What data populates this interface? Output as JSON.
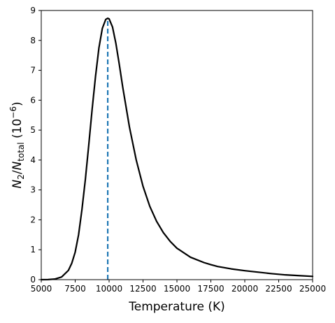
{
  "chart_data": {
    "type": "line",
    "title": "",
    "xlabel": "Temperature (K)",
    "ylabel": {
      "numerator_symbol": "N",
      "numerator_sub": "2",
      "slash": "/",
      "denominator_symbol": "N",
      "denominator_sub": "total",
      "unit_open": " (10",
      "unit_exp": "−6",
      "unit_close": ")"
    },
    "xlim": [
      5000,
      25000
    ],
    "ylim": [
      0,
      9
    ],
    "xticks": [
      5000,
      7500,
      10000,
      12500,
      15000,
      17500,
      20000,
      22500,
      25000
    ],
    "xtick_labels": [
      "5000",
      "7500",
      "10000",
      "12500",
      "15000",
      "17500",
      "20000",
      "22500",
      "25000"
    ],
    "yticks": [
      0,
      1,
      2,
      3,
      4,
      5,
      6,
      7,
      8,
      9
    ],
    "ytick_labels": [
      "0",
      "1",
      "2",
      "3",
      "4",
      "5",
      "6",
      "7",
      "8",
      "9"
    ],
    "grid": false,
    "legend": "none",
    "series": [
      {
        "color": "#000000",
        "style": "solid",
        "x": [
          5000,
          5500,
          6000,
          6500,
          7000,
          7250,
          7500,
          7750,
          8000,
          8250,
          8500,
          8750,
          9000,
          9250,
          9500,
          9750,
          9900,
          10000,
          10250,
          10500,
          10750,
          11000,
          11500,
          12000,
          12500,
          13000,
          13500,
          14000,
          14500,
          15000,
          16000,
          17000,
          17500,
          18000,
          19000,
          20000,
          21000,
          22000,
          22500,
          23000,
          24000,
          25000
        ],
        "y": [
          0.0,
          0.003,
          0.02,
          0.09,
          0.31,
          0.55,
          0.92,
          1.5,
          2.35,
          3.35,
          4.5,
          5.7,
          6.8,
          7.75,
          8.4,
          8.7,
          8.74,
          8.72,
          8.45,
          7.9,
          7.2,
          6.45,
          5.1,
          4.0,
          3.12,
          2.45,
          1.95,
          1.57,
          1.28,
          1.05,
          0.75,
          0.57,
          0.5,
          0.44,
          0.36,
          0.3,
          0.25,
          0.2,
          0.18,
          0.16,
          0.135,
          0.11
        ]
      },
      {
        "color": "#1f77b4",
        "style": "dashed",
        "x": [
          9900,
          9900
        ],
        "y": [
          0,
          8.74
        ]
      }
    ]
  }
}
